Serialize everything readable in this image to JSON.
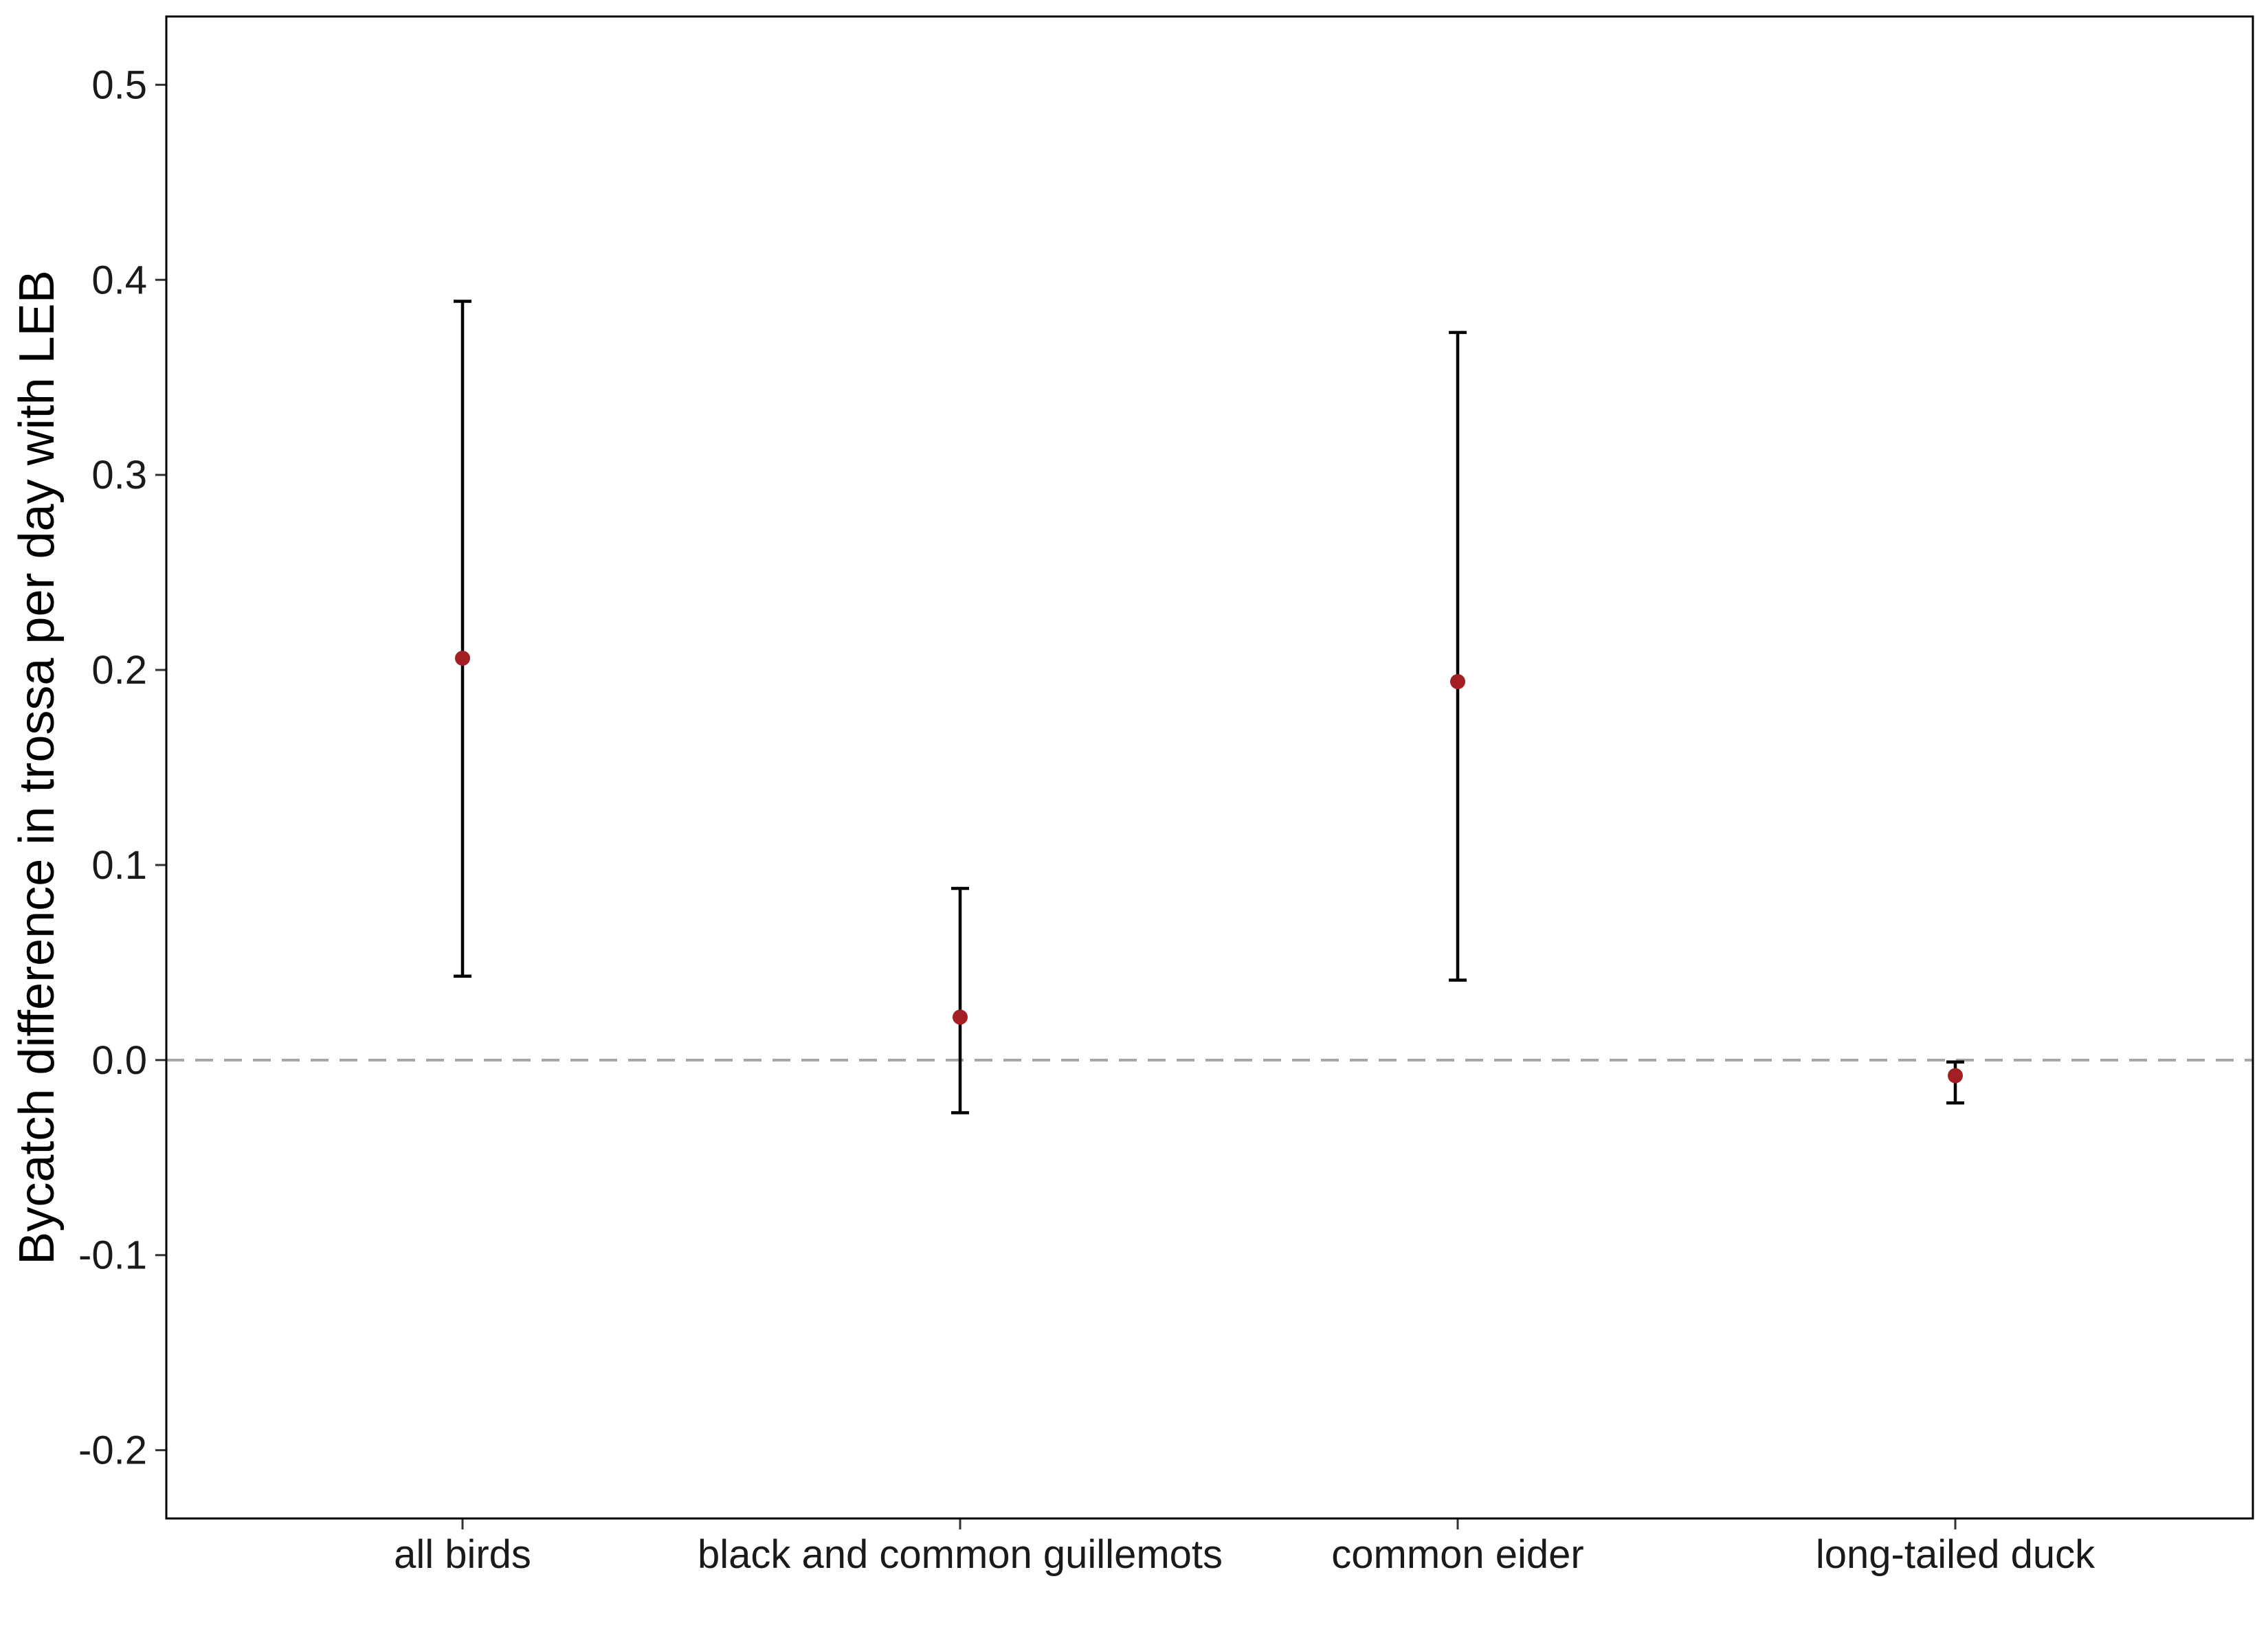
{
  "chart_data": {
    "type": "scatter",
    "title": "",
    "xlabel": "",
    "ylabel": "Bycatch difference in trossa per day with LEB",
    "categories": [
      "all birds",
      "black and common guillemots",
      "common eider",
      "long-tailed duck"
    ],
    "values": [
      0.206,
      0.022,
      0.194,
      -0.008
    ],
    "lower": [
      0.043,
      -0.027,
      0.041,
      -0.022
    ],
    "upper": [
      0.389,
      0.088,
      0.373,
      -0.001
    ],
    "ylim": [
      -0.235,
      0.535
    ],
    "yticks": [
      -0.2,
      -0.1,
      0.0,
      0.1,
      0.2,
      0.3,
      0.4,
      0.5
    ],
    "ytick_labels": [
      "-0.2",
      "-0.1",
      "0.0",
      "0.1",
      "0.2",
      "0.3",
      "0.4",
      "0.5"
    ],
    "reference_line": 0.0,
    "grid": false,
    "point_color": "#a31f24",
    "errorbar_color": "#000000",
    "reference_line_color": "#a6a6a6"
  }
}
